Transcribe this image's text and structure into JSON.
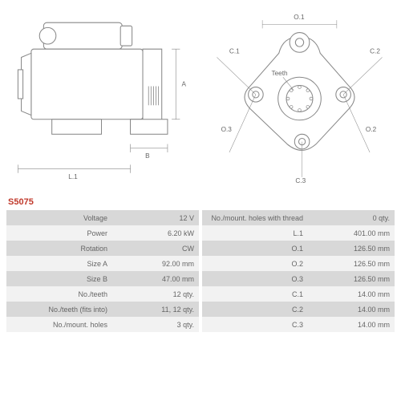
{
  "part_number": "S5075",
  "diagram_left": {
    "labels": {
      "L1": "L.1",
      "A": "A",
      "B": "B"
    },
    "stroke": "#888888",
    "fill": "#ffffff"
  },
  "diagram_right": {
    "labels": {
      "O1": "O.1",
      "O2": "O.2",
      "O3": "O.3",
      "C1": "C.1",
      "C2": "C.2",
      "C3": "C.3",
      "Teeth": "Teeth"
    },
    "stroke": "#888888",
    "fill": "#ffffff"
  },
  "specs_left": [
    {
      "label": "Voltage",
      "value": "12 V"
    },
    {
      "label": "Power",
      "value": "6.20 kW"
    },
    {
      "label": "Rotation",
      "value": "CW"
    },
    {
      "label": "Size A",
      "value": "92.00 mm"
    },
    {
      "label": "Size B",
      "value": "47.00 mm"
    },
    {
      "label": "No./teeth",
      "value": "12 qty."
    },
    {
      "label": "No./teeth (fits into)",
      "value": "11, 12 qty."
    },
    {
      "label": "No./mount. holes",
      "value": "3 qty."
    }
  ],
  "specs_right": [
    {
      "label": "No./mount. holes with thread",
      "value": "0 qty."
    },
    {
      "label": "L.1",
      "value": "401.00 mm"
    },
    {
      "label": "O.1",
      "value": "126.50 mm"
    },
    {
      "label": "O.2",
      "value": "126.50 mm"
    },
    {
      "label": "O.3",
      "value": "126.50 mm"
    },
    {
      "label": "C.1",
      "value": "14.00 mm"
    },
    {
      "label": "C.2",
      "value": "14.00 mm"
    },
    {
      "label": "C.3",
      "value": "14.00 mm"
    }
  ],
  "colors": {
    "row_odd": "#d8d8d8",
    "row_even": "#f2f2f2",
    "text": "#666666",
    "accent": "#c0392b",
    "stroke": "#888888"
  }
}
